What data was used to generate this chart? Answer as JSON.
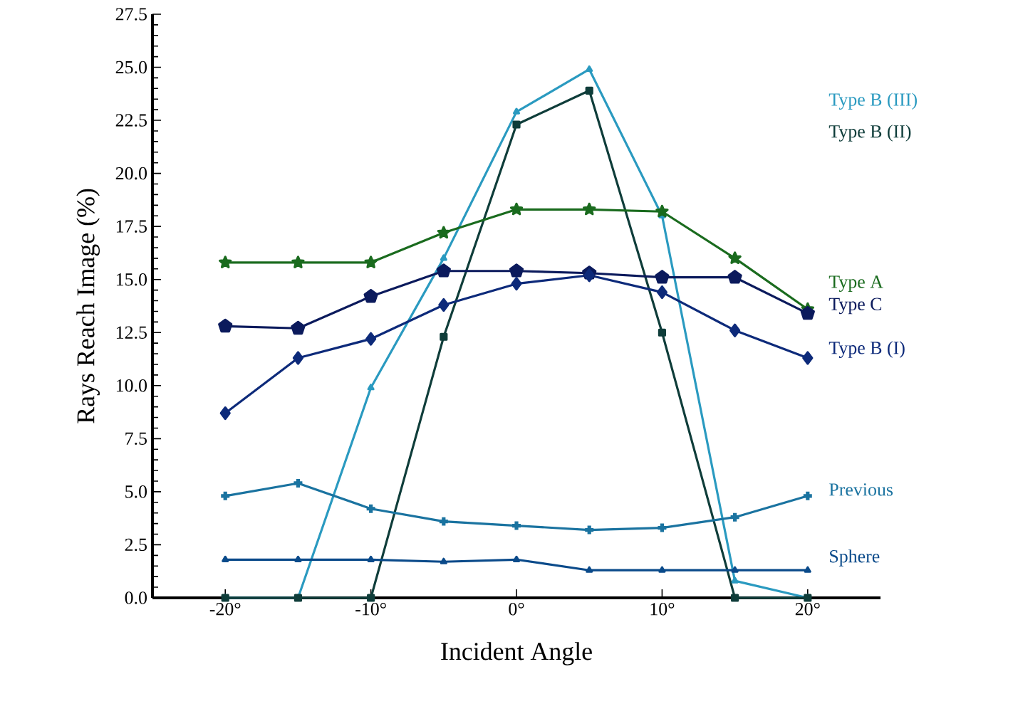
{
  "chart_data": {
    "type": "line",
    "xlabel": "Incident Angle",
    "ylabel": "Rays Reach Image (%)",
    "x": [
      -20,
      -15,
      -10,
      -5,
      0,
      5,
      10,
      15,
      20
    ],
    "xlim": [
      -25,
      25
    ],
    "xticks": [
      {
        "value": -20,
        "label": "-20°"
      },
      {
        "value": -10,
        "label": "-10°"
      },
      {
        "value": 0,
        "label": "0°"
      },
      {
        "value": 10,
        "label": "10°"
      },
      {
        "value": 20,
        "label": "20°"
      }
    ],
    "ylim": [
      0,
      27.5
    ],
    "yticks": [
      {
        "value": 0,
        "label": "0.0"
      },
      2.5,
      {
        "value": 5,
        "label": "5.0"
      },
      7.5,
      {
        "value": 10,
        "label": "10.0"
      },
      12.5,
      {
        "value": 15,
        "label": "15.0"
      },
      17.5,
      {
        "value": 20,
        "label": "20.0"
      },
      22.5,
      {
        "value": 25,
        "label": "25.0"
      },
      27.5
    ],
    "grid": false,
    "legend": false,
    "series": [
      {
        "name": "Type B (III)",
        "color": "#2a9ac0",
        "marker": "triangle",
        "values": [
          0,
          0,
          9.9,
          16.0,
          22.9,
          24.9,
          18.0,
          0.8,
          0
        ]
      },
      {
        "name": "Type B (II)",
        "color": "#0f3d3a",
        "marker": "square",
        "values": [
          0,
          0,
          0,
          12.3,
          22.3,
          23.9,
          12.5,
          0,
          0
        ]
      },
      {
        "name": "Type A",
        "color": "#1a6b1e",
        "marker": "star",
        "values": [
          15.8,
          15.8,
          15.8,
          17.2,
          18.3,
          18.3,
          18.2,
          16.0,
          13.6
        ]
      },
      {
        "name": "Type C",
        "color": "#0b1a5c",
        "marker": "circle",
        "values": [
          12.8,
          12.7,
          14.2,
          15.4,
          15.4,
          15.3,
          15.1,
          15.1,
          13.4
        ]
      },
      {
        "name": "Type B (I)",
        "color": "#0d2a7a",
        "marker": "diamond",
        "values": [
          8.7,
          11.3,
          12.2,
          13.8,
          14.8,
          15.2,
          14.4,
          12.6,
          11.3
        ]
      },
      {
        "name": "Previous",
        "color": "#1a73a0",
        "marker": "cross",
        "values": [
          4.8,
          5.4,
          4.2,
          3.6,
          3.4,
          3.2,
          3.3,
          3.8,
          4.8
        ]
      },
      {
        "name": "Sphere",
        "color": "#0a4a8a",
        "marker": "triangle",
        "values": [
          1.8,
          1.8,
          1.8,
          1.7,
          1.8,
          1.3,
          1.3,
          1.3,
          1.3
        ]
      }
    ]
  }
}
